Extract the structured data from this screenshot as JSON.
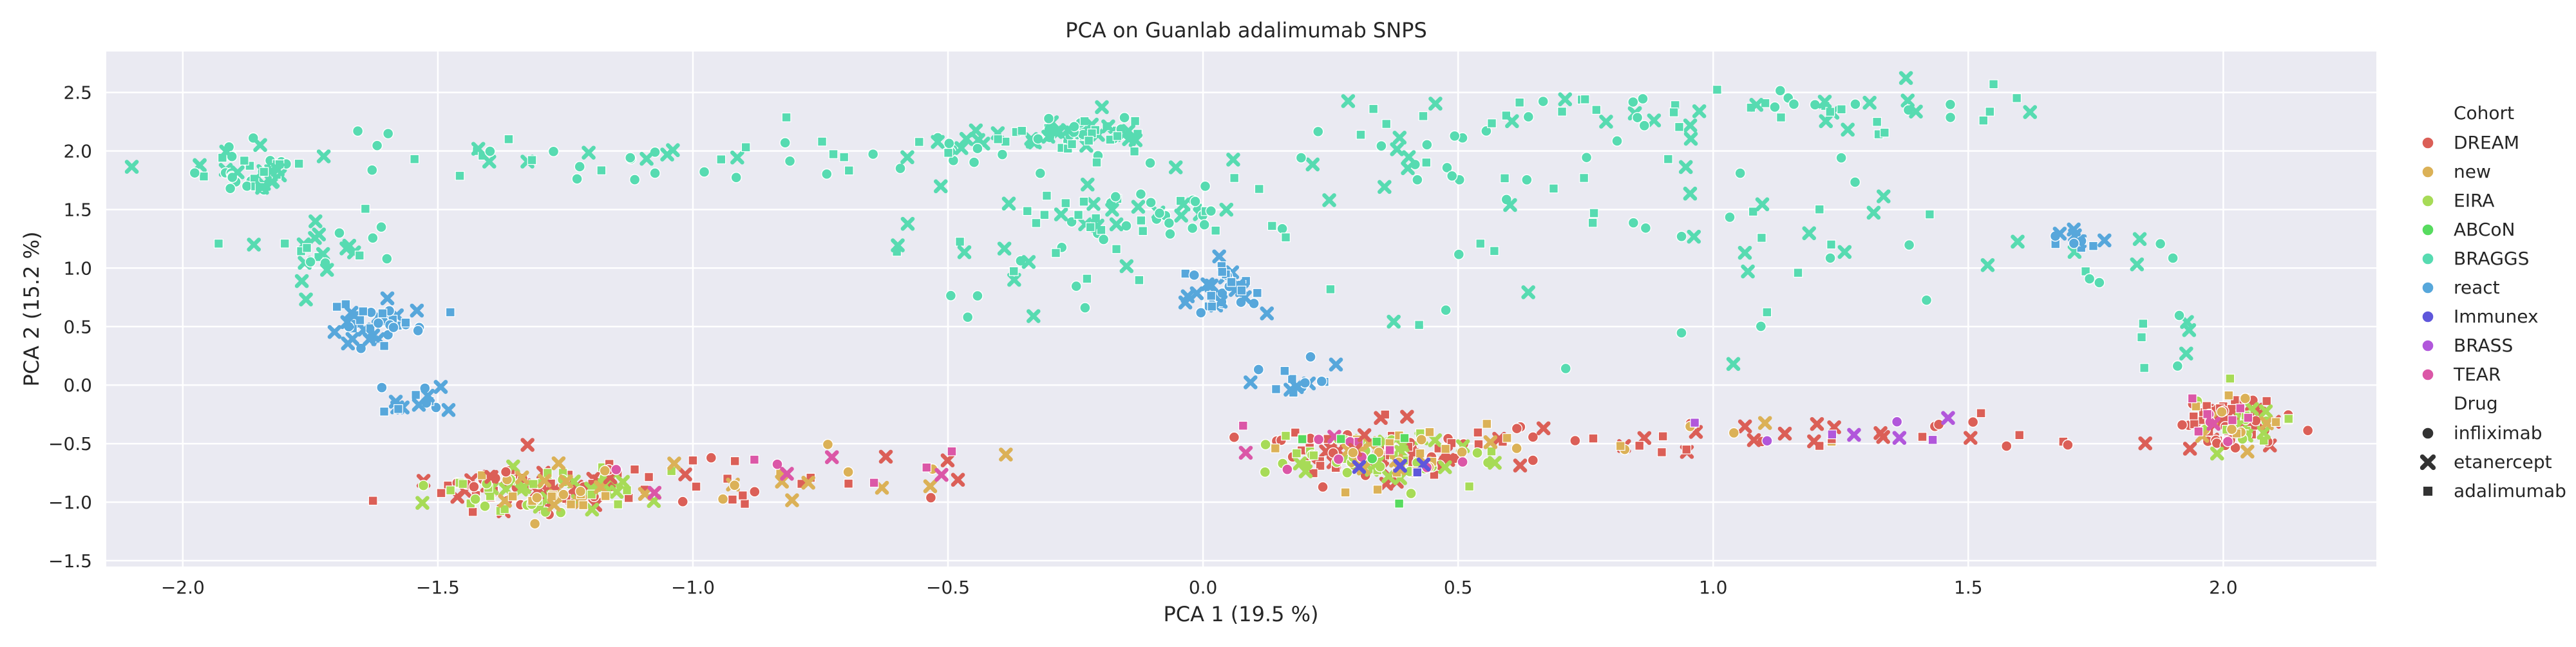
{
  "chart_data": {
    "type": "scatter",
    "title": "PCA on Guanlab adalimumab SNPS",
    "xlabel": "PCA 1 (19.5 %)",
    "ylabel": "PCA 2 (15.2 %)",
    "xlim": [
      -2.15,
      2.3
    ],
    "ylim": [
      -1.55,
      2.85
    ],
    "x_ticks": [
      "−2.0",
      "−1.5",
      "−1.0",
      "−0.5",
      "0.0",
      "0.5",
      "1.0",
      "1.5",
      "2.0"
    ],
    "y_ticks": [
      "−1.5",
      "−1.0",
      "−0.5",
      "0.0",
      "0.5",
      "1.0",
      "1.5",
      "2.0",
      "2.5"
    ],
    "grid": true,
    "background": "#eaeaf2",
    "legend_placement": "right",
    "legend": {
      "hue_title": "Cohort",
      "style_title": "Drug",
      "cohorts": [
        {
          "name": "DREAM",
          "color": "#db5f57"
        },
        {
          "name": "new",
          "color": "#dbb157"
        },
        {
          "name": "EIRA",
          "color": "#a7db57"
        },
        {
          "name": "ABCoN",
          "color": "#57db5f"
        },
        {
          "name": "BRAGGS",
          "color": "#57dbb1"
        },
        {
          "name": "react",
          "color": "#57a7db"
        },
        {
          "name": "Immunex",
          "color": "#5f57db"
        },
        {
          "name": "BRASS",
          "color": "#b157db"
        },
        {
          "name": "TEAR",
          "color": "#db57a7"
        }
      ],
      "drugs": [
        {
          "name": "infliximab",
          "marker": "circle"
        },
        {
          "name": "etanercept",
          "marker": "x"
        },
        {
          "name": "adalimumab",
          "marker": "square"
        }
      ]
    },
    "clusters": [
      {
        "cohort": "BRAGGS",
        "cx": -1.87,
        "cy": 1.85,
        "sx": 0.05,
        "sy": 0.11,
        "n": 45
      },
      {
        "cohort": "BRAGGS",
        "cx": -1.72,
        "cy": 1.15,
        "sx": 0.06,
        "sy": 0.14,
        "n": 26
      },
      {
        "cohort": "BRAGGS",
        "cx": -1.1,
        "cy": 1.95,
        "sx": 0.45,
        "sy": 0.12,
        "n": 55
      },
      {
        "cohort": "BRAGGS",
        "cx": -0.35,
        "cy": 2.1,
        "sx": 0.12,
        "sy": 0.07,
        "n": 30
      },
      {
        "cohort": "BRAGGS",
        "cx": -0.22,
        "cy": 2.17,
        "sx": 0.06,
        "sy": 0.07,
        "n": 40
      },
      {
        "cohort": "BRAGGS",
        "cx": -0.1,
        "cy": 1.45,
        "sx": 0.12,
        "sy": 0.12,
        "n": 45
      },
      {
        "cohort": "BRAGGS",
        "cx": -0.35,
        "cy": 1.05,
        "sx": 0.15,
        "sy": 0.35,
        "n": 25
      },
      {
        "cohort": "BRAGGS",
        "cx": 0.3,
        "cy": 1.8,
        "sx": 0.25,
        "sy": 0.3,
        "n": 35
      },
      {
        "cohort": "BRAGGS",
        "cx": 0.75,
        "cy": 2.3,
        "sx": 0.2,
        "sy": 0.12,
        "n": 25
      },
      {
        "cohort": "BRAGGS",
        "cx": 1.2,
        "cy": 2.35,
        "sx": 0.25,
        "sy": 0.15,
        "n": 40
      },
      {
        "cohort": "BRAGGS",
        "cx": 1.2,
        "cy": 1.55,
        "sx": 0.25,
        "sy": 0.25,
        "n": 25
      },
      {
        "cohort": "BRAGGS",
        "cx": 0.7,
        "cy": 1.0,
        "sx": 0.35,
        "sy": 0.35,
        "n": 20
      },
      {
        "cohort": "BRAGGS",
        "cx": 1.75,
        "cy": 1.0,
        "sx": 0.05,
        "sy": 0.2,
        "n": 8
      },
      {
        "cohort": "BRAGGS",
        "cx": 1.9,
        "cy": 0.4,
        "sx": 0.04,
        "sy": 0.15,
        "n": 8
      },
      {
        "cohort": "react",
        "cx": -1.62,
        "cy": 0.52,
        "sx": 0.05,
        "sy": 0.1,
        "n": 42
      },
      {
        "cohort": "react",
        "cx": -1.53,
        "cy": -0.15,
        "sx": 0.04,
        "sy": 0.07,
        "n": 16
      },
      {
        "cohort": "react",
        "cx": 0.04,
        "cy": 0.8,
        "sx": 0.04,
        "sy": 0.12,
        "n": 38
      },
      {
        "cohort": "react",
        "cx": 0.2,
        "cy": 0.05,
        "sx": 0.04,
        "sy": 0.1,
        "n": 18
      },
      {
        "cohort": "react",
        "cx": 1.72,
        "cy": 1.25,
        "sx": 0.03,
        "sy": 0.05,
        "n": 12
      },
      {
        "cohort": "DREAM",
        "cx": -1.3,
        "cy": -0.9,
        "sx": 0.1,
        "sy": 0.1,
        "n": 70
      },
      {
        "cohort": "EIRA",
        "cx": -1.3,
        "cy": -0.92,
        "sx": 0.1,
        "sy": 0.1,
        "n": 55
      },
      {
        "cohort": "new",
        "cx": -1.3,
        "cy": -0.95,
        "sx": 0.1,
        "sy": 0.1,
        "n": 25
      },
      {
        "cohort": "DREAM",
        "cx": -0.9,
        "cy": -0.8,
        "sx": 0.25,
        "sy": 0.12,
        "n": 25
      },
      {
        "cohort": "new",
        "cx": -0.85,
        "cy": -0.82,
        "sx": 0.25,
        "sy": 0.12,
        "n": 15
      },
      {
        "cohort": "TEAR",
        "cx": -0.6,
        "cy": -0.7,
        "sx": 0.3,
        "sy": 0.2,
        "n": 10
      },
      {
        "cohort": "DREAM",
        "cx": 0.33,
        "cy": -0.6,
        "sx": 0.1,
        "sy": 0.13,
        "n": 75
      },
      {
        "cohort": "EIRA",
        "cx": 0.35,
        "cy": -0.6,
        "sx": 0.1,
        "sy": 0.12,
        "n": 60
      },
      {
        "cohort": "new",
        "cx": 0.35,
        "cy": -0.62,
        "sx": 0.1,
        "sy": 0.12,
        "n": 25
      },
      {
        "cohort": "TEAR",
        "cx": 0.3,
        "cy": -0.55,
        "sx": 0.1,
        "sy": 0.12,
        "n": 12
      },
      {
        "cohort": "Immunex",
        "cx": 0.38,
        "cy": -0.7,
        "sx": 0.05,
        "sy": 0.1,
        "n": 4
      },
      {
        "cohort": "DREAM",
        "cx": 0.9,
        "cy": -0.45,
        "sx": 0.3,
        "sy": 0.08,
        "n": 25
      },
      {
        "cohort": "new",
        "cx": 0.9,
        "cy": -0.45,
        "sx": 0.3,
        "sy": 0.08,
        "n": 12
      },
      {
        "cohort": "DREAM",
        "cx": 1.55,
        "cy": -0.4,
        "sx": 0.2,
        "sy": 0.08,
        "n": 14
      },
      {
        "cohort": "DREAM",
        "cx": 2.02,
        "cy": -0.3,
        "sx": 0.05,
        "sy": 0.12,
        "n": 70
      },
      {
        "cohort": "EIRA",
        "cx": 2.03,
        "cy": -0.32,
        "sx": 0.05,
        "sy": 0.12,
        "n": 22
      },
      {
        "cohort": "new",
        "cx": 2.02,
        "cy": -0.35,
        "sx": 0.05,
        "sy": 0.12,
        "n": 12
      },
      {
        "cohort": "TEAR",
        "cx": 2.0,
        "cy": -0.3,
        "sx": 0.05,
        "sy": 0.1,
        "n": 10
      },
      {
        "cohort": "BRASS",
        "cx": 1.1,
        "cy": -0.35,
        "sx": 0.3,
        "sy": 0.08,
        "n": 8
      },
      {
        "cohort": "ABCoN",
        "cx": 0.3,
        "cy": -0.4,
        "sx": 0.15,
        "sy": 0.2,
        "n": 6
      }
    ]
  }
}
